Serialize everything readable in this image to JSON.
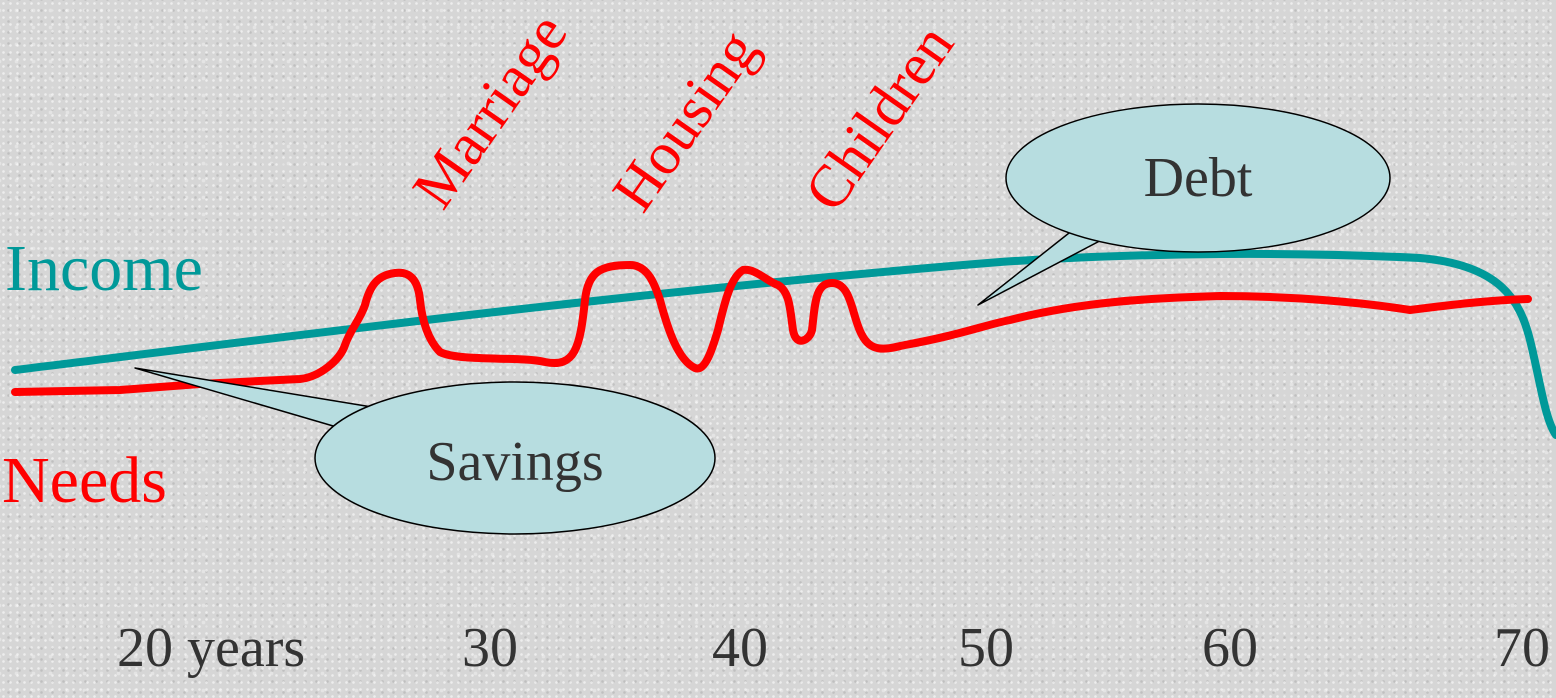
{
  "labels": {
    "income": "Income",
    "needs": "Needs"
  },
  "events": {
    "marriage": "Marriage",
    "housing": "Housing",
    "children": "Children"
  },
  "callouts": {
    "savings": "Savings",
    "debt": "Debt"
  },
  "axis": {
    "ticks": [
      "20 years",
      "30",
      "40",
      "50",
      "60",
      "70"
    ]
  },
  "colors": {
    "income": "#009999",
    "needs": "#ff0000",
    "callout_fill": "#b7dde0",
    "text_dark": "#333333"
  }
}
